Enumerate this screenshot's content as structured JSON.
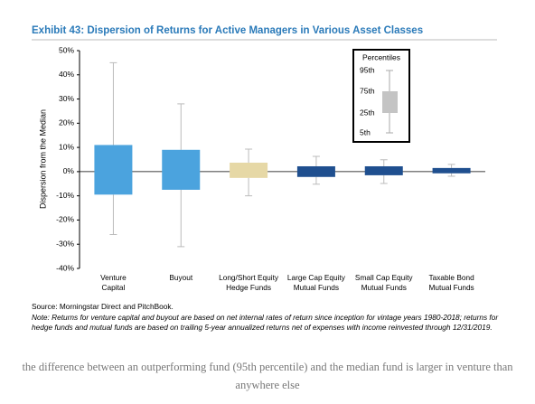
{
  "chart_data": {
    "type": "box",
    "title": "Exhibit 43: Dispersion of Returns for Active Managers in Various Asset Classes",
    "y_label": "Dispersion from the Median",
    "categories": [
      [
        "Venture",
        "Capital"
      ],
      [
        "Buyout"
      ],
      [
        "Long/Short Equity",
        "Hedge Funds"
      ],
      [
        "Large Cap Equity",
        "Mutual Funds"
      ],
      [
        "Small Cap Equity",
        "Mutual Funds"
      ],
      [
        "Taxable Bond",
        "Mutual Funds"
      ]
    ],
    "p95": [
      45,
      28,
      9.3,
      6.3,
      4.9,
      3
    ],
    "p75": [
      11,
      9,
      3.7,
      2.2,
      2.2,
      1.5
    ],
    "p25": [
      -9.5,
      -7.5,
      -2.6,
      -2.2,
      -1.5,
      -0.7
    ],
    "p5": [
      -26,
      -31,
      -10,
      -5.2,
      -4.9,
      -1.9
    ],
    "colors": [
      "#4ba3de",
      "#4ba3de",
      "#e6d8a6",
      "#1f4f8f",
      "#1f4f8f",
      "#1f4f8f"
    ],
    "ylim": [
      -40,
      50
    ],
    "yticks": [
      {
        "value": -40,
        "label": "-40%"
      },
      {
        "value": -30,
        "label": "-30%"
      },
      {
        "value": -20,
        "label": "-20%"
      },
      {
        "value": -10,
        "label": "-10%"
      },
      {
        "value": 0,
        "label": "0%"
      },
      {
        "value": 10,
        "label": "10%"
      },
      {
        "value": 20,
        "label": "20%"
      },
      {
        "value": 30,
        "label": "30%"
      },
      {
        "value": 40,
        "label": "40%"
      },
      {
        "value": 50,
        "label": "50%"
      }
    ],
    "legend": {
      "title": "Percentiles",
      "labels": [
        "95th",
        "75th",
        "25th",
        "5th"
      ]
    },
    "source": "Source: Morningstar Direct and PitchBook.",
    "note": "Note: Returns for venture capital and buyout are based on net internal rates of return since inception for vintage years 1980-2018; returns for hedge funds and mutual funds are based on trailing 5-year annualized returns net of expenses with income reinvested through 12/31/2019."
  },
  "caption": "the difference between an outperforming fund (95th percentile) and the median fund is larger in venture than anywhere else"
}
